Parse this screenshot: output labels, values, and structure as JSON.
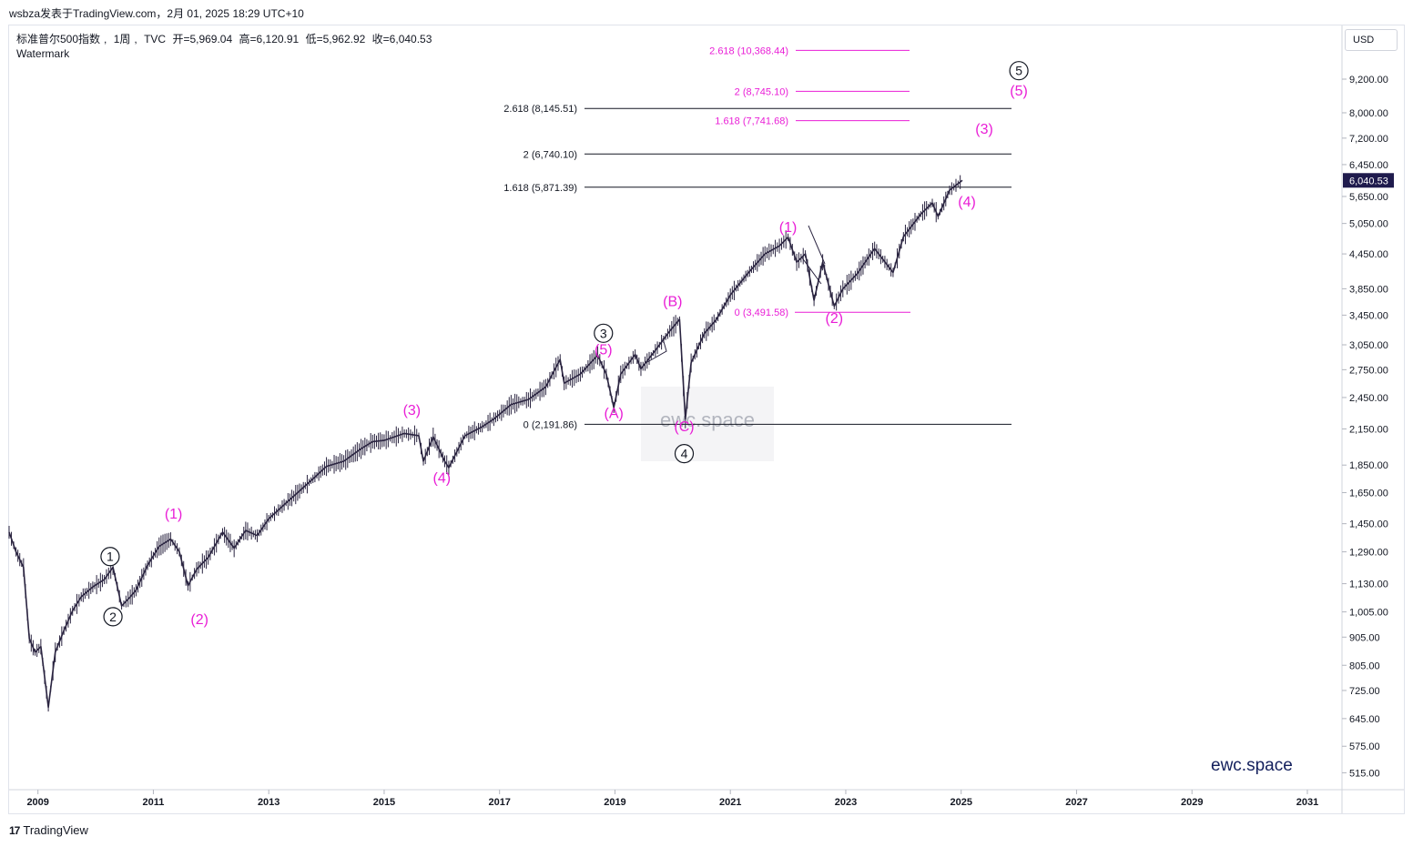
{
  "header": {
    "publish_caption": "wsbza发表于TradingView.com，2月 01, 2025 18:29 UTC+10",
    "symbol_name": "标准普尔500指数",
    "interval": "1周",
    "source": "TVC",
    "open": "开=5,969.04",
    "high": "高=6,120.91",
    "low": "低=5,962.92",
    "close": "收=6,040.53",
    "watermark_label": "Watermark"
  },
  "price_axis": {
    "currency": "USD",
    "last_price_label": "6,040.53"
  },
  "branding": {
    "watermark_text": "ewc.space",
    "corner_text": "ewc.space",
    "footer_text": "TradingView",
    "footer_logo": "17"
  },
  "colors": {
    "accent": "#e91ed6",
    "black": "#131722",
    "candle": "#2a2440",
    "last_price_bg": "#1f1b4d",
    "brand": "#131f5c"
  },
  "chart_data": {
    "type": "line",
    "title": "标准普尔500指数",
    "xlabel": "",
    "ylabel": "",
    "scale": "log",
    "ylim": [
      480,
      11500
    ],
    "xlim": [
      2008.5,
      2031.6
    ],
    "x_ticks": [
      2009,
      2011,
      2013,
      2015,
      2017,
      2019,
      2021,
      2023,
      2025,
      2027,
      2029,
      2031
    ],
    "y_ticks": [
      "9,200.00",
      "8,000.00",
      "7,200.00",
      "6,450.00",
      "5,650.00",
      "5,050.00",
      "4,450.00",
      "3,850.00",
      "3,450.00",
      "3,050.00",
      "2,750.00",
      "2,450.00",
      "2,150.00",
      "1,850.00",
      "1,650.00",
      "1,450.00",
      "1,290.00",
      "1,130.00",
      "1,005.00",
      "905.00",
      "805.00",
      "725.00",
      "645.00",
      "575.00",
      "515.00"
    ],
    "y_tick_values": [
      9200,
      8000,
      7200,
      6450,
      5650,
      5050,
      4450,
      3850,
      3450,
      3050,
      2750,
      2450,
      2150,
      1850,
      1650,
      1450,
      1290,
      1130,
      1005,
      905,
      805,
      725,
      645,
      575,
      515
    ],
    "series": [
      {
        "values": [
          [
            2008.5,
            1400
          ],
          [
            2008.62,
            1290
          ],
          [
            2008.75,
            1210
          ],
          [
            2008.85,
            900
          ],
          [
            2008.95,
            850
          ],
          [
            2009.05,
            870
          ],
          [
            2009.18,
            676
          ],
          [
            2009.3,
            850
          ],
          [
            2009.45,
            930
          ],
          [
            2009.6,
            1010
          ],
          [
            2009.75,
            1070
          ],
          [
            2009.95,
            1115
          ],
          [
            2010.15,
            1150
          ],
          [
            2010.3,
            1210
          ],
          [
            2010.45,
            1030
          ],
          [
            2010.6,
            1070
          ],
          [
            2010.7,
            1100
          ],
          [
            2010.9,
            1220
          ],
          [
            2011.1,
            1320
          ],
          [
            2011.3,
            1360
          ],
          [
            2011.45,
            1290
          ],
          [
            2011.6,
            1120
          ],
          [
            2011.75,
            1200
          ],
          [
            2011.95,
            1260
          ],
          [
            2012.2,
            1400
          ],
          [
            2012.4,
            1310
          ],
          [
            2012.6,
            1410
          ],
          [
            2012.8,
            1380
          ],
          [
            2013.0,
            1480
          ],
          [
            2013.3,
            1580
          ],
          [
            2013.5,
            1650
          ],
          [
            2013.8,
            1760
          ],
          [
            2014.0,
            1840
          ],
          [
            2014.3,
            1880
          ],
          [
            2014.6,
            1980
          ],
          [
            2014.8,
            2040
          ],
          [
            2015.0,
            2050
          ],
          [
            2015.35,
            2110
          ],
          [
            2015.6,
            2090
          ],
          [
            2015.68,
            1880
          ],
          [
            2015.85,
            2080
          ],
          [
            2016.05,
            1880
          ],
          [
            2016.12,
            1830
          ],
          [
            2016.4,
            2090
          ],
          [
            2016.7,
            2170
          ],
          [
            2016.9,
            2240
          ],
          [
            2017.2,
            2380
          ],
          [
            2017.5,
            2430
          ],
          [
            2017.8,
            2560
          ],
          [
            2018.05,
            2870
          ],
          [
            2018.12,
            2600
          ],
          [
            2018.4,
            2700
          ],
          [
            2018.7,
            2920
          ],
          [
            2018.85,
            2700
          ],
          [
            2018.98,
            2350
          ],
          [
            2019.1,
            2700
          ],
          [
            2019.35,
            2930
          ],
          [
            2019.45,
            2760
          ],
          [
            2019.7,
            2980
          ],
          [
            2019.95,
            3230
          ],
          [
            2020.12,
            3390
          ],
          [
            2020.22,
            2240
          ],
          [
            2020.32,
            2830
          ],
          [
            2020.55,
            3200
          ],
          [
            2020.75,
            3380
          ],
          [
            2021.0,
            3750
          ],
          [
            2021.3,
            4100
          ],
          [
            2021.6,
            4450
          ],
          [
            2021.85,
            4600
          ],
          [
            2022.0,
            4770
          ],
          [
            2022.15,
            4300
          ],
          [
            2022.3,
            4450
          ],
          [
            2022.45,
            3670
          ],
          [
            2022.6,
            4300
          ],
          [
            2022.8,
            3580
          ],
          [
            2022.95,
            3850
          ],
          [
            2023.2,
            4100
          ],
          [
            2023.5,
            4550
          ],
          [
            2023.82,
            4120
          ],
          [
            2024.0,
            4780
          ],
          [
            2024.3,
            5250
          ],
          [
            2024.5,
            5500
          ],
          [
            2024.6,
            5200
          ],
          [
            2024.8,
            5800
          ],
          [
            2025.02,
            6040
          ]
        ]
      }
    ],
    "fib_levels_black": [
      {
        "label": "2.618 (8,145.51)",
        "value": 8145.51
      },
      {
        "label": "2 (6,740.10)",
        "value": 6740.1
      },
      {
        "label": "1.618 (5,871.39)",
        "value": 5871.39
      },
      {
        "label": "0 (2,191.86)",
        "value": 2191.86
      }
    ],
    "fib_levels_magenta": [
      {
        "label": "2.618 (10,368.44)",
        "value": 10368.44
      },
      {
        "label": "2 (8,745.10)",
        "value": 8745.1
      },
      {
        "label": "1.618 (7,741.68)",
        "value": 7741.68
      },
      {
        "label": "0 (3,491.58)",
        "value": 3491.58
      }
    ],
    "wave_labels_circled": [
      {
        "text": "1",
        "x": 2010.25,
        "y": 1265
      },
      {
        "text": "2",
        "x": 2010.3,
        "y": 985
      },
      {
        "text": "3",
        "x": 2018.8,
        "y": 3200
      },
      {
        "text": "4",
        "x": 2020.2,
        "y": 1940
      },
      {
        "text": "5",
        "x": 2026.0,
        "y": 9530
      }
    ],
    "wave_labels_magenta": [
      {
        "text": "(1)",
        "x": 2011.35,
        "y": 1480
      },
      {
        "text": "(2)",
        "x": 2011.8,
        "y": 955
      },
      {
        "text": "(3)",
        "x": 2015.48,
        "y": 2280
      },
      {
        "text": "(4)",
        "x": 2016.0,
        "y": 1720
      },
      {
        "text": "(5)",
        "x": 2018.8,
        "y": 2930
      },
      {
        "text": "(A)",
        "x": 2018.98,
        "y": 2250
      },
      {
        "text": "(B)",
        "x": 2020.0,
        "y": 3580
      },
      {
        "text": "(C)",
        "x": 2020.2,
        "y": 2130
      },
      {
        "text": "(1)",
        "x": 2022.0,
        "y": 4870
      },
      {
        "text": "(2)",
        "x": 2022.8,
        "y": 3340
      },
      {
        "text": "(3)",
        "x": 2025.4,
        "y": 7330
      },
      {
        "text": "(4)",
        "x": 2025.1,
        "y": 5420
      },
      {
        "text": "(5)",
        "x": 2026.0,
        "y": 8590
      }
    ]
  }
}
